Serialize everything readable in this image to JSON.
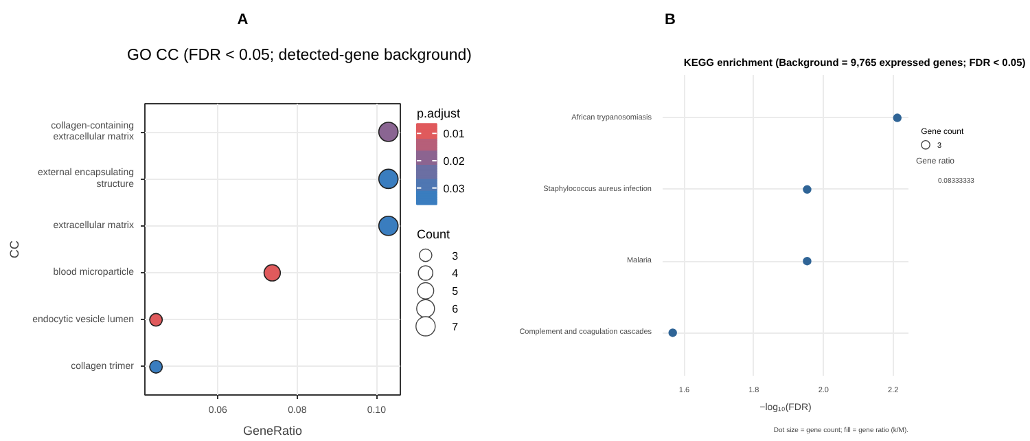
{
  "chart_data": [
    {
      "type": "bubble",
      "title": "GO CC (FDR < 0.05; detected-gene background)",
      "xlabel": "GeneRatio",
      "ylabel": "CC",
      "legend_title": "Count",
      "clabel": "p.adjust",
      "annotations": [
        "A"
      ],
      "categories": [
        "collagen-containing extracellular matrix",
        "external encapsulating structure",
        "extracellular matrix",
        "blood microparticle",
        "endocytic vesicle lumen",
        "collagen trimer"
      ],
      "values": [
        0.103,
        0.103,
        0.103,
        0.0737,
        0.0444,
        0.0444
      ],
      "sizes": [
        7,
        7,
        7,
        5,
        3,
        3
      ],
      "size_legend": [
        3,
        4,
        5,
        6,
        7
      ],
      "colors": [
        "#8a6592",
        "#3a7dbf",
        "#3a7dbf",
        "#e05a5c",
        "#e05a5c",
        "#3a7dbf"
      ],
      "clim": [
        0.036,
        0.0065
      ],
      "cticks": [
        0.01,
        0.02,
        0.03
      ],
      "orientation": "horizontal",
      "xlim": [
        0.0416,
        0.106
      ],
      "xticks": [
        0.06,
        0.08,
        {
          "value": 0.1,
          "label": "0.10"
        }
      ],
      "grid": true
    },
    {
      "type": "bubble",
      "title": "KEGG enrichment (Background = 9,765 expressed genes; FDR < 0.05)",
      "xlabel": "−log₁₀(FDR)",
      "legend_title": "Gene count",
      "clabel": "Gene ratio",
      "annotations": [
        "B",
        "Dot size = gene count; fill = gene ratio (k/M)."
      ],
      "categories": [
        "African trypanosomiasis",
        "Staphylococcus aureus infection",
        "Malaria",
        "Complement and coagulation cascades"
      ],
      "series": [
        {
          "name": "0.08333333",
          "color": "#2f6496",
          "values": [
            2.212,
            1.953,
            1.953,
            1.567
          ],
          "sizes": [
            3,
            3,
            3,
            3
          ]
        }
      ],
      "size_legend": [
        3
      ],
      "orientation": "horizontal",
      "xlim": [
        1.538,
        2.244
      ],
      "xticks": [
        1.6,
        1.8,
        {
          "value": 2,
          "label": "2.0"
        },
        2.2
      ],
      "grid": true,
      "legend": "right"
    }
  ]
}
